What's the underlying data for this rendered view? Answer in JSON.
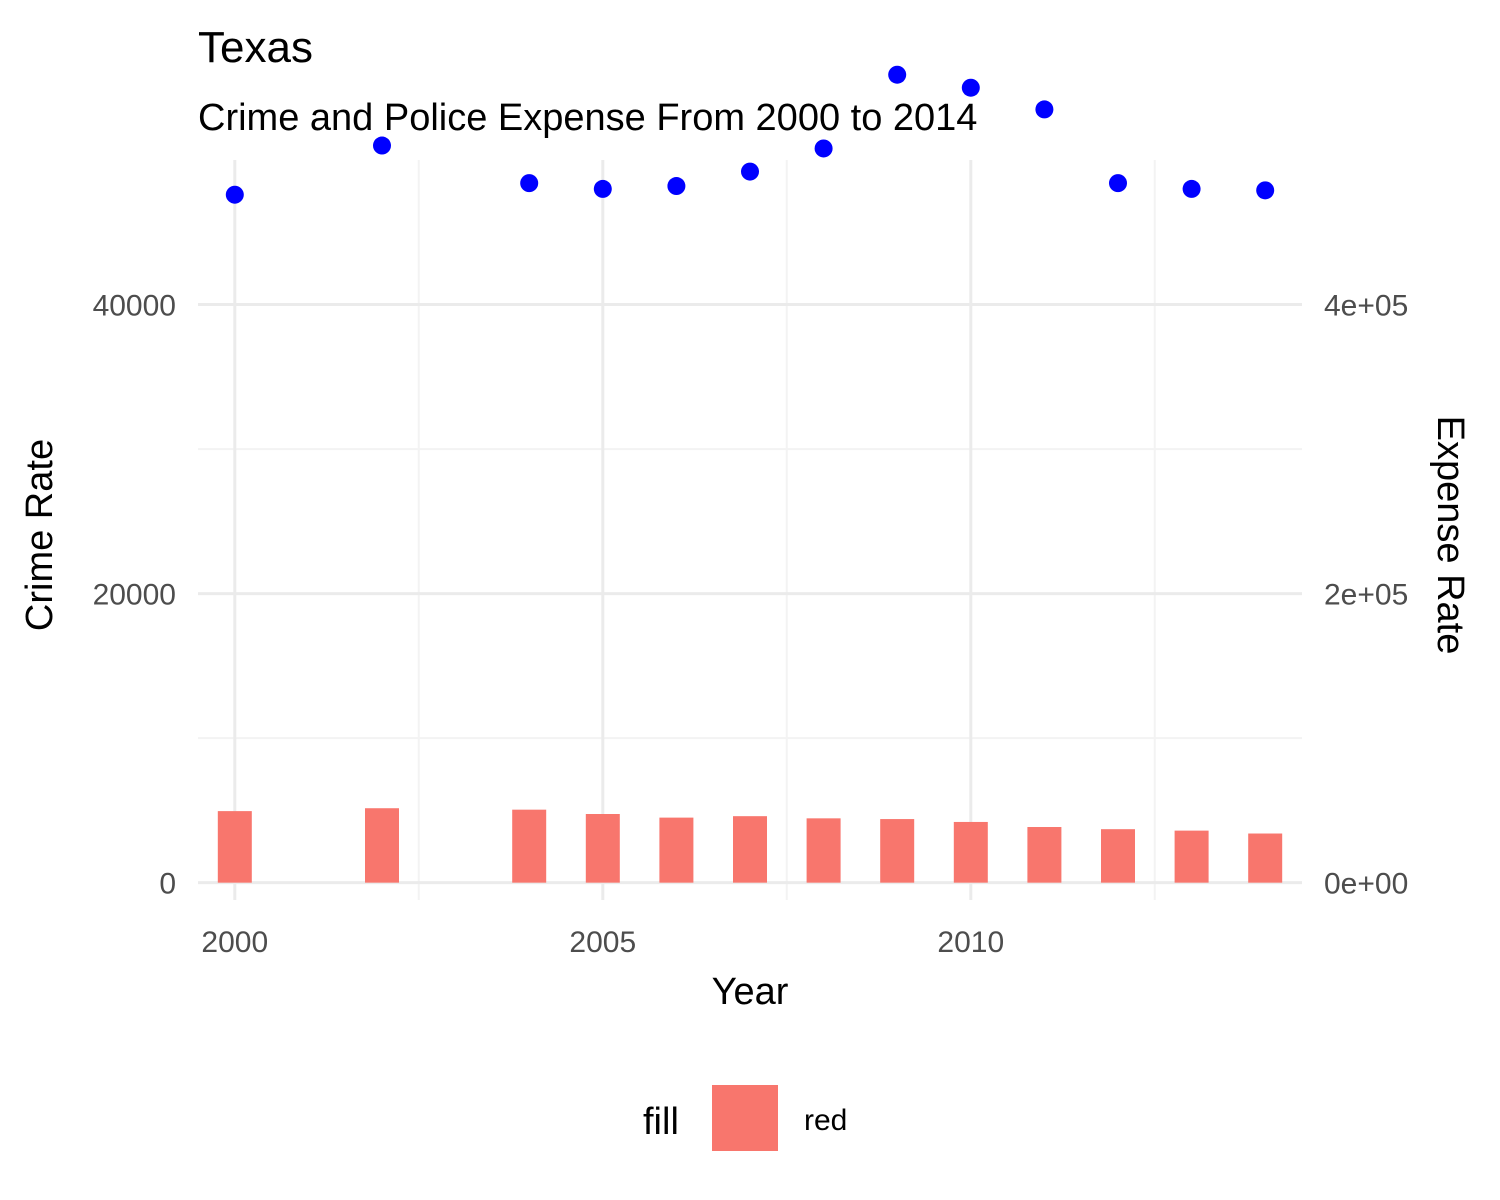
{
  "chart_data": {
    "type": "bar",
    "title": "Texas",
    "subtitle": "Crime and Police Expense From 2000 to 2014",
    "xlabel": "Year",
    "ylabel_left": "Crime Rate",
    "ylabel_right": "Expense Rate",
    "xlim": [
      1999.5,
      2014.5
    ],
    "ylim_left": [
      -1200,
      50000
    ],
    "ylim_right": [
      -12000,
      500000
    ],
    "x_ticks": [
      2000,
      2005,
      2010
    ],
    "x_tick_labels": [
      "2000",
      "2005",
      "2010"
    ],
    "y_left_ticks": [
      0,
      20000,
      40000
    ],
    "y_left_tick_labels": [
      "0",
      "20000",
      "40000"
    ],
    "y_right_ticks": [
      0,
      200000,
      400000
    ],
    "y_right_tick_labels": [
      "0e+00",
      "2e+05",
      "4e+05"
    ],
    "grid": true,
    "legend_position": "bottom",
    "legend": {
      "title": "fill",
      "label": "red"
    },
    "colors": {
      "bars": "#F8766D",
      "points": "#0000FF",
      "crime_axis_title": "#FF0000",
      "expense_axis_title": "#0000FF",
      "grid": "#EBEBEB"
    },
    "series": [
      {
        "name": "Crime Rate",
        "kind": "bar",
        "axis": "left",
        "x": [
          2000,
          2002,
          2004,
          2005,
          2006,
          2007,
          2008,
          2009,
          2010,
          2011,
          2012,
          2013,
          2014
        ],
        "values": [
          4950,
          5150,
          5050,
          4750,
          4500,
          4600,
          4450,
          4400,
          4200,
          3850,
          3700,
          3600,
          3400
        ]
      },
      {
        "name": "Expense Rate",
        "kind": "scatter",
        "axis": "right",
        "x": [
          2000,
          2002,
          2004,
          2005,
          2006,
          2007,
          2008,
          2009,
          2010,
          2011,
          2012,
          2013,
          2014
        ],
        "values": [
          476000,
          510000,
          484000,
          480000,
          482000,
          492000,
          508000,
          559000,
          550000,
          535000,
          484000,
          480000,
          479000
        ]
      }
    ]
  }
}
